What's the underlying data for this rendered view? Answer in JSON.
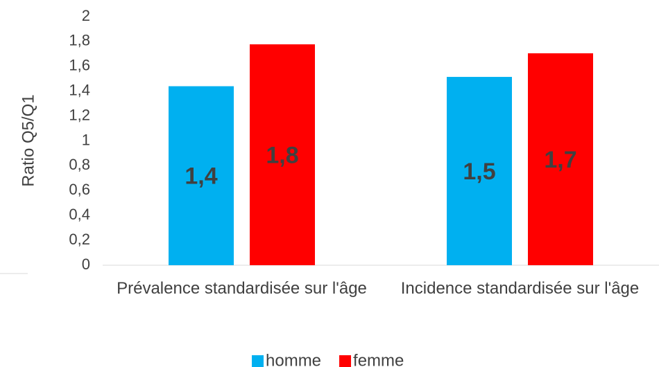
{
  "chart_data": {
    "type": "bar",
    "y_label": "Ratio Q5/Q1",
    "categories": [
      "Prévalence standardisée sur l'âge",
      "Incidence standardisée sur l'âge"
    ],
    "series": [
      {
        "name": "homme",
        "color": "#00b0f0",
        "values": [
          1.44,
          1.515
        ],
        "value_labels": [
          "1,4",
          "1,5"
        ]
      },
      {
        "name": "femme",
        "color": "#ff0000",
        "values": [
          1.777,
          1.705
        ],
        "value_labels": [
          "1,8",
          "1,7"
        ]
      }
    ],
    "ylim": [
      0,
      2
    ],
    "yticks": [
      0,
      {
        "value": 0.2,
        "label": "0,2"
      },
      {
        "value": 0.4,
        "label": "0,4"
      },
      {
        "value": 0.6,
        "label": "0,6"
      },
      {
        "value": 0.8,
        "label": "0,8"
      },
      1,
      {
        "value": 1.2,
        "label": "1,2"
      },
      {
        "value": 1.4,
        "label": "1,4"
      },
      {
        "value": 1.6,
        "label": "1,6"
      },
      {
        "value": 1.8,
        "label": "1,8"
      },
      2
    ],
    "grid": false,
    "legend": "bottom"
  }
}
